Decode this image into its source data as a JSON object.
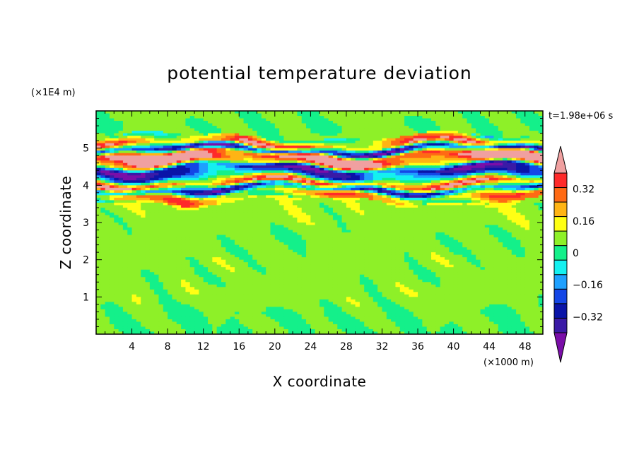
{
  "chart_data": {
    "type": "heatmap",
    "title": "potential temperature deviation",
    "xlabel": "X coordinate",
    "ylabel": "Z coordinate",
    "x_unit": "(×1000 m)",
    "y_unit": "(×1E4 m)",
    "time_label": "t=1.98e+06 s",
    "xlim": [
      0,
      50
    ],
    "ylim": [
      0,
      6
    ],
    "xticks": [
      4,
      8,
      12,
      16,
      20,
      24,
      28,
      32,
      36,
      40,
      44,
      48
    ],
    "yticks": [
      1,
      2,
      3,
      4,
      5
    ],
    "colorbar": {
      "levels": [
        -0.48,
        -0.4,
        -0.32,
        -0.24,
        -0.16,
        -0.08,
        0,
        0.08,
        0.16,
        0.24,
        0.32,
        0.4,
        0.48
      ],
      "colors": [
        "#7a0ea8",
        "#3a1aa6",
        "#0a14a8",
        "#1446e6",
        "#1ea0ff",
        "#14f0f0",
        "#14f08a",
        "#8ef028",
        "#ffff14",
        "#ffb414",
        "#ff6a14",
        "#ff2a2a",
        "#f0a0a0"
      ],
      "tick_labels": [
        "0.32",
        "0.16",
        "0",
        "−0.16",
        "−0.32"
      ],
      "tick_values": [
        0.32,
        0.16,
        0,
        -0.16,
        -0.32
      ],
      "extend": "both"
    },
    "field_bands": [
      {
        "z": 0.5,
        "value": 0.0
      },
      {
        "z": 1.0,
        "value": 0.04
      },
      {
        "z": 1.5,
        "value": 0.03
      },
      {
        "z": 2.0,
        "value": 0.04
      },
      {
        "z": 2.5,
        "value": 0.02
      },
      {
        "z": 3.0,
        "value": 0.04
      },
      {
        "z": 3.5,
        "value": 0.05
      },
      {
        "z": 3.75,
        "value": 0.2
      },
      {
        "z": 3.9,
        "value": -0.35
      },
      {
        "z": 4.05,
        "value": 0.35
      },
      {
        "z": 4.25,
        "value": -0.2
      },
      {
        "z": 4.45,
        "value": -0.4
      },
      {
        "z": 4.6,
        "value": 0.3
      },
      {
        "z": 4.8,
        "value": 0.45
      },
      {
        "z": 4.95,
        "value": -0.42
      },
      {
        "z": 5.1,
        "value": 0.3
      },
      {
        "z": 5.3,
        "value": 0.02
      },
      {
        "z": 5.6,
        "value": 0.0
      },
      {
        "z": 5.9,
        "value": 0.02
      }
    ]
  }
}
